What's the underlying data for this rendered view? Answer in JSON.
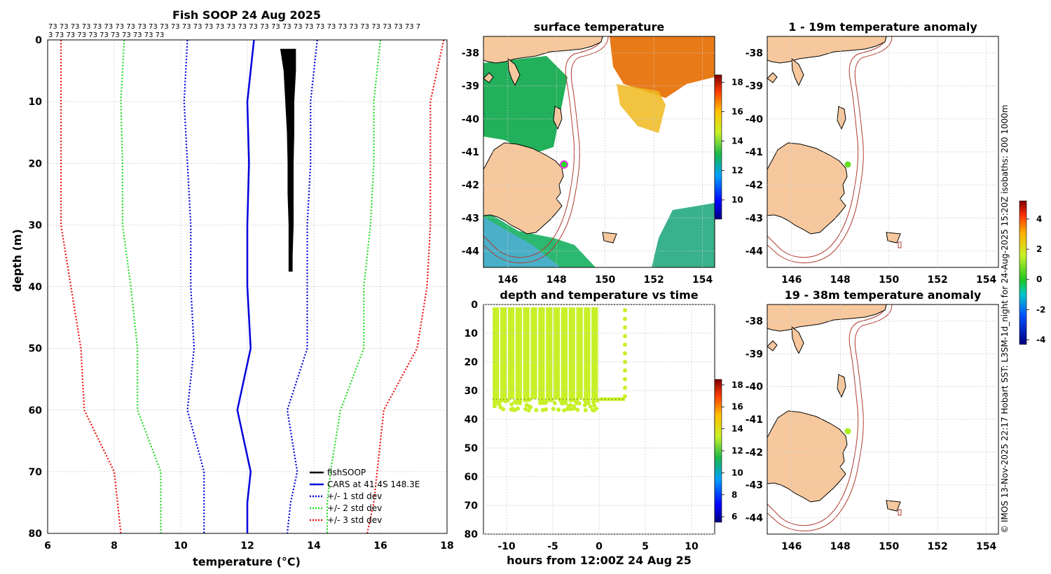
{
  "chart_data": [
    {
      "type": "line",
      "title": "Fish SOOP 24 Aug 2025",
      "xlabel": "temperature (°C)",
      "ylabel": "depth (m)",
      "xlim": [
        6,
        18
      ],
      "ylim": [
        80,
        0
      ],
      "xticks": [
        "6",
        "8",
        "10",
        "12",
        "14",
        "16",
        "18"
      ],
      "yticks": [
        "0",
        "10",
        "20",
        "30",
        "40",
        "50",
        "60",
        "70",
        "80"
      ],
      "top_annotation_line1": "73 73 73 73 73 73 73 73 73 73 73 73 73 73 73 73 73 73 73 73 73 73 73 73 73 73 73 73 73 73 73 73 73 7",
      "top_annotation_line2": "3 73 73 73 73 73 73 73 73 73 73",
      "depths": [
        0,
        10,
        20,
        30,
        40,
        50,
        60,
        70,
        75,
        80
      ],
      "series": [
        {
          "name": "fishSOOP",
          "color": "#000000",
          "style": "band",
          "depth": [
            1.5,
            5,
            10,
            15,
            20,
            25,
            30,
            35,
            37.5
          ],
          "tmin": [
            13.0,
            13.1,
            13.15,
            13.2,
            13.22,
            13.22,
            13.25,
            13.25,
            13.25
          ],
          "tmax": [
            13.45,
            13.45,
            13.4,
            13.4,
            13.38,
            13.38,
            13.38,
            13.35,
            13.35
          ]
        },
        {
          "name": "CARS at 41.4S 148.3E",
          "color": "#0000dd",
          "style": "solid",
          "values": [
            12.2,
            12.0,
            12.05,
            12.0,
            12.0,
            12.1,
            11.7,
            12.1,
            12.0,
            12.0
          ]
        },
        {
          "name": "+/- 1 std dev",
          "color": "#0000dd",
          "style": "dotted",
          "values": [
            10.2,
            10.1,
            10.2,
            10.3,
            10.3,
            10.4,
            10.2,
            10.7,
            10.7,
            10.7
          ]
        },
        {
          "name": "+/- 1 std dev hi",
          "color": "#0000dd",
          "style": "dotted",
          "legend": false,
          "values": [
            14.1,
            13.9,
            13.9,
            13.8,
            13.8,
            13.8,
            13.2,
            13.5,
            13.3,
            13.2
          ]
        },
        {
          "name": "+/- 2 std dev",
          "color": "#22dd22",
          "style": "dotted",
          "values": [
            8.3,
            8.2,
            8.25,
            8.25,
            8.5,
            8.7,
            8.7,
            9.4,
            9.4,
            9.4
          ]
        },
        {
          "name": "+/- 2 std dev hi",
          "color": "#22dd22",
          "style": "dotted",
          "legend": false,
          "values": [
            16.0,
            15.8,
            15.8,
            15.7,
            15.5,
            15.5,
            14.8,
            14.5,
            14.4,
            14.4
          ]
        },
        {
          "name": "+/- 3 std dev",
          "color": "#ee1111",
          "style": "dotted",
          "values": [
            6.4,
            6.4,
            6.4,
            6.4,
            6.7,
            7.0,
            7.1,
            8.0,
            8.1,
            8.2
          ]
        },
        {
          "name": "+/- 3 std dev hi",
          "color": "#ee1111",
          "style": "dotted",
          "legend": false,
          "values": [
            17.9,
            17.5,
            17.5,
            17.5,
            17.4,
            17.1,
            16.1,
            15.9,
            15.8,
            15.6
          ]
        }
      ],
      "legend": [
        "fishSOOP",
        "CARS at 41.4S 148.3E",
        "+/- 1 std dev",
        "+/- 2 std dev",
        "+/- 3 std dev"
      ],
      "legend_position": "bottom-right"
    },
    {
      "type": "heatmap",
      "title": "surface temperature",
      "xlim": [
        145,
        154.5
      ],
      "ylim": [
        -44.5,
        -37.5
      ],
      "xticks": [
        "146",
        "148",
        "150",
        "152",
        "154"
      ],
      "yticks": [
        "-38",
        "-39",
        "-40",
        "-41",
        "-42",
        "-43",
        "-44"
      ],
      "colorbar": {
        "min": 8.7,
        "max": 18.5,
        "ticks": [
          "10",
          "12",
          "14",
          "16",
          "18"
        ]
      },
      "marker": {
        "lon": 148.3,
        "lat": -41.4,
        "color": "#e03ae0"
      }
    },
    {
      "type": "scatter",
      "title": "depth and temperature vs time",
      "xlabel": "hours from 12:00Z 24 Aug 25",
      "xlim": [
        -12.5,
        12.5
      ],
      "ylim": [
        80,
        0
      ],
      "xticks": [
        "-10",
        "-5",
        "0",
        "5",
        "10"
      ],
      "yticks": [
        "0",
        "10",
        "20",
        "30",
        "40",
        "50",
        "60",
        "70",
        "80"
      ],
      "colorbar": {
        "min": 5.5,
        "max": 18.5,
        "ticks": [
          "6",
          "8",
          "10",
          "12",
          "14",
          "16",
          "18"
        ]
      },
      "point_color": "#c8f028",
      "time_range_hours": [
        -11.5,
        2.8
      ],
      "depth_range_m": [
        1,
        37
      ],
      "dive_count": 14
    },
    {
      "type": "heatmap",
      "title": "1 - 19m temperature anomaly",
      "xlim": [
        145,
        154.5
      ],
      "ylim": [
        -44.5,
        -37.5
      ],
      "xticks": [
        "146",
        "148",
        "150",
        "152",
        "154"
      ],
      "yticks": [
        "-38",
        "-39",
        "-40",
        "-41",
        "-42",
        "-43",
        "-44"
      ],
      "marker": {
        "lon": 148.3,
        "lat": -41.45,
        "color": "#66dd22"
      }
    },
    {
      "type": "heatmap",
      "title": "19 - 38m temperature anomaly",
      "xlim": [
        145,
        154.5
      ],
      "ylim": [
        -44.5,
        -37.5
      ],
      "xticks": [
        "146",
        "148",
        "150",
        "152",
        "154"
      ],
      "yticks": [
        "-38",
        "-39",
        "-40",
        "-41",
        "-42",
        "-43",
        "-44"
      ],
      "marker": {
        "lon": 148.3,
        "lat": -41.4,
        "color": "#aaee22"
      }
    }
  ],
  "anomaly_colorbar": {
    "min": -4.3,
    "max": 5.2,
    "ticks": [
      "-4",
      "-2",
      "0",
      "2",
      "4"
    ]
  },
  "side_note": "© IMOS 13-Nov-2025 22:17 Hobart SST: L3SM-1d_night for 24-Aug-2025 15:20Z isobaths: 200  1000m",
  "colors": {
    "land": "#f7c89d",
    "isobath": "#b03a2e",
    "ocean_cool": "#22b05a",
    "ocean_warm": "#e8a020"
  }
}
